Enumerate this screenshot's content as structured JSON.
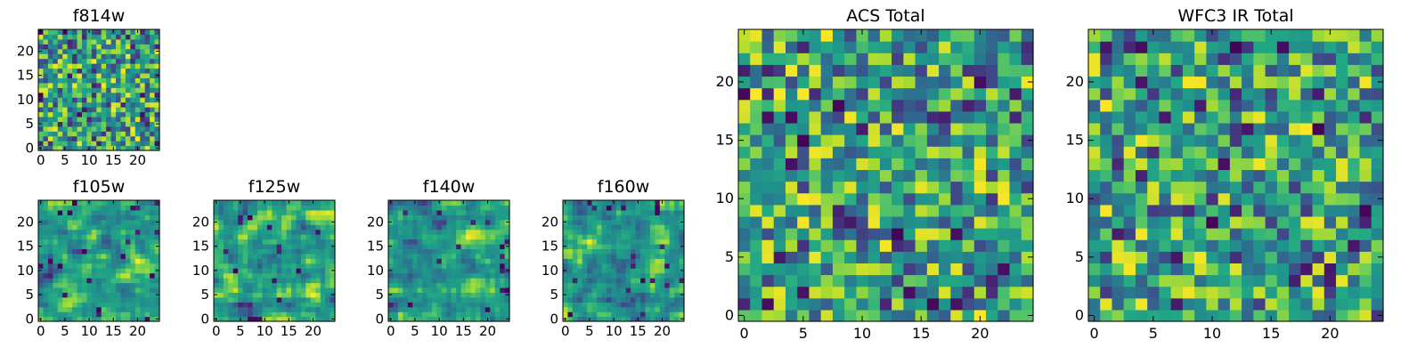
{
  "chart_data": [
    {
      "type": "heatmap",
      "id": "f814w",
      "title": "f814w",
      "xlim": [
        0,
        25
      ],
      "ylim": [
        0,
        25
      ],
      "xticks": [
        0,
        5,
        10,
        15,
        20
      ],
      "yticks": [
        0,
        5,
        10,
        15,
        20
      ],
      "grid": false,
      "colormap": "viridis",
      "size": [
        25,
        25
      ],
      "texture": "noise",
      "seed": 814
    },
    {
      "type": "heatmap",
      "id": "f105w",
      "title": "f105w",
      "xlim": [
        0,
        25
      ],
      "ylim": [
        0,
        25
      ],
      "xticks": [
        0,
        5,
        10,
        15,
        20
      ],
      "yticks": [
        0,
        5,
        10,
        15,
        20
      ],
      "grid": false,
      "colormap": "viridis",
      "size": [
        25,
        25
      ],
      "texture": "smooth",
      "seed": 105
    },
    {
      "type": "heatmap",
      "id": "f125w",
      "title": "f125w",
      "xlim": [
        0,
        25
      ],
      "ylim": [
        0,
        25
      ],
      "xticks": [
        0,
        5,
        10,
        15,
        20
      ],
      "yticks": [
        0,
        5,
        10,
        15,
        20
      ],
      "grid": false,
      "colormap": "viridis",
      "size": [
        25,
        25
      ],
      "texture": "smooth",
      "seed": 125
    },
    {
      "type": "heatmap",
      "id": "f140w",
      "title": "f140w",
      "xlim": [
        0,
        25
      ],
      "ylim": [
        0,
        25
      ],
      "xticks": [
        0,
        5,
        10,
        15,
        20
      ],
      "yticks": [
        0,
        5,
        10,
        15,
        20
      ],
      "grid": false,
      "colormap": "viridis",
      "size": [
        25,
        25
      ],
      "texture": "smooth",
      "seed": 140
    },
    {
      "type": "heatmap",
      "id": "f160w",
      "title": "f160w",
      "xlim": [
        0,
        25
      ],
      "ylim": [
        0,
        25
      ],
      "xticks": [
        0,
        5,
        10,
        15,
        20
      ],
      "yticks": [
        0,
        5,
        10,
        15,
        20
      ],
      "grid": false,
      "colormap": "viridis",
      "size": [
        25,
        25
      ],
      "texture": "smooth",
      "seed": 160
    },
    {
      "type": "heatmap",
      "id": "acs-total",
      "title": "ACS Total",
      "xlim": [
        0,
        25
      ],
      "ylim": [
        0,
        25
      ],
      "xticks": [
        0,
        5,
        10,
        15,
        20
      ],
      "yticks": [
        0,
        5,
        10,
        15,
        20
      ],
      "grid": false,
      "colormap": "viridis",
      "size": [
        25,
        25
      ],
      "texture": "noise",
      "seed": 9001
    },
    {
      "type": "heatmap",
      "id": "wfc3-ir-total",
      "title": "WFC3 IR Total",
      "xlim": [
        0,
        25
      ],
      "ylim": [
        0,
        25
      ],
      "xticks": [
        0,
        5,
        10,
        15,
        20
      ],
      "yticks": [
        0,
        5,
        10,
        15,
        20
      ],
      "grid": false,
      "colormap": "viridis",
      "size": [
        25,
        25
      ],
      "texture": "noise",
      "seed": 7777
    }
  ]
}
